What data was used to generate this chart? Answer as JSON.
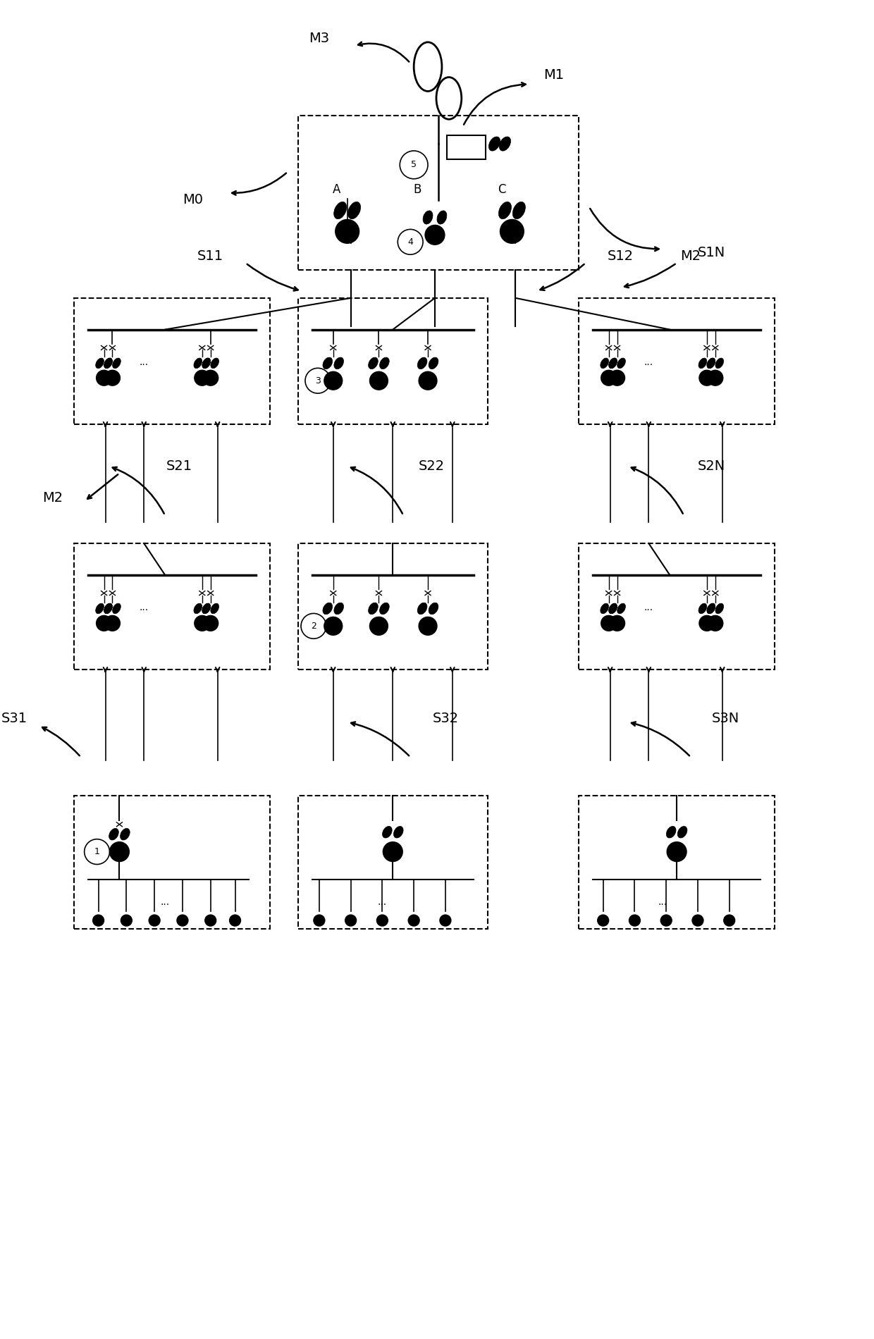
{
  "bg_color": "#ffffff",
  "line_color": "#000000",
  "text_color": "#000000",
  "dashed_box_color": "#000000",
  "figsize": [
    12.4,
    19.0
  ],
  "dpi": 100,
  "labels": {
    "M0": "M0",
    "M1": "M1",
    "M2_top": "M2",
    "M3": "M3",
    "S11": "S11",
    "S12": "S12",
    "S1N": "S1N",
    "M2_mid": "M2",
    "S21": "S21",
    "S22": "S22",
    "S2N": "S2N",
    "S31": "S31",
    "S32": "S32",
    "S3N": "S3N",
    "A": "A",
    "B": "B",
    "C": "C",
    "circle1": "1",
    "circle2": "2",
    "circle3": "3",
    "circle4": "4",
    "circle5": "5"
  }
}
